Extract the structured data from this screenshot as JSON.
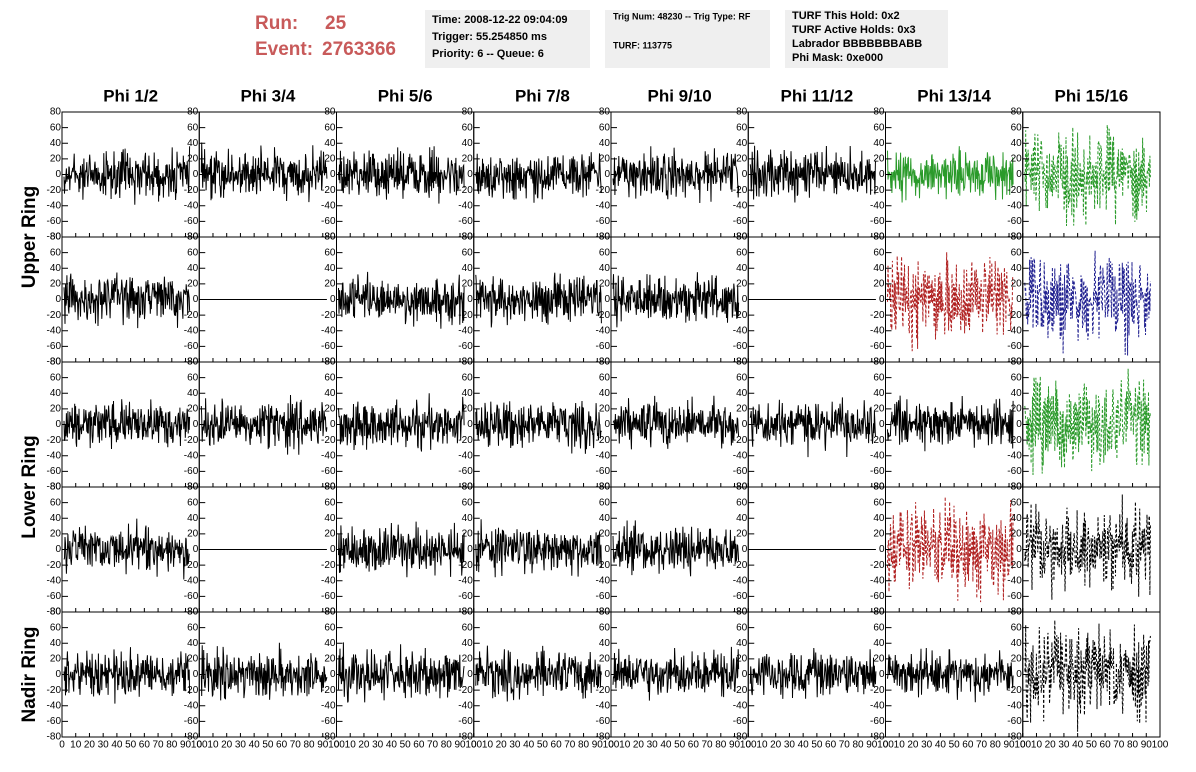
{
  "header": {
    "run_label": "Run:",
    "run": "25",
    "event_label": "Event:",
    "event": "2763366"
  },
  "info_boxes": [
    [
      {
        "text": "Time: 2008-12-22 09:04:09"
      },
      {
        "text": "Trigger: 55.254850 ms"
      },
      {
        "text": "Priority: 6 -- Queue: 6"
      }
    ],
    [
      {
        "text": "Trig Num: 48230 -- Trig Type: RF"
      },
      {
        "text": "TURF: 113775"
      }
    ],
    [
      {
        "text": "TURF This Hold: 0x2"
      },
      {
        "text": "TURF Active Holds: 0x3"
      },
      {
        "text": "Labrador BBBBBBBABB",
        "color": "#e020e0"
      },
      {
        "text": "Phi Mask: 0xe000"
      }
    ]
  ],
  "columns": [
    "Phi 1/2",
    "Phi 3/4",
    "Phi 5/6",
    "Phi 7/8",
    "Phi 9/10",
    "Phi 11/12",
    "Phi 13/14",
    "Phi 15/16"
  ],
  "ring_labels": [
    "Upper Ring",
    "Lower Ring",
    "Nadir Ring"
  ],
  "axes": {
    "ylim": [
      -80,
      80
    ],
    "yticks": [
      -80,
      -60,
      -40,
      -20,
      0,
      20,
      40,
      60,
      80
    ],
    "xlim": [
      0,
      100
    ],
    "xticks": [
      0,
      10,
      20,
      30,
      40,
      50,
      60,
      70,
      80,
      90,
      100
    ]
  },
  "panels": [
    [
      {
        "color": "#000000"
      },
      {
        "color": "#000000"
      },
      {
        "color": "#000000"
      },
      {
        "color": "#000000"
      },
      {
        "color": "#000000"
      },
      {
        "color": "#000000"
      },
      {
        "color": "#2a9a2a"
      },
      {
        "color": "#2a9a2a",
        "dashed": true
      }
    ],
    [
      {
        "color": "#000000"
      },
      {
        "color": "#000000",
        "flat": true
      },
      {
        "color": "#000000"
      },
      {
        "color": "#000000"
      },
      {
        "color": "#000000"
      },
      {
        "color": "#000000",
        "flat": true
      },
      {
        "color": "#b02020",
        "dashed": true
      },
      {
        "color": "#202090",
        "dashed": true
      }
    ],
    [
      {
        "color": "#000000"
      },
      {
        "color": "#000000"
      },
      {
        "color": "#000000"
      },
      {
        "color": "#000000"
      },
      {
        "color": "#000000"
      },
      {
        "color": "#000000"
      },
      {
        "color": "#000000"
      },
      {
        "color": "#2a9a2a",
        "dashed": true
      }
    ],
    [
      {
        "color": "#000000"
      },
      {
        "color": "#000000",
        "flat": true
      },
      {
        "color": "#000000"
      },
      {
        "color": "#000000"
      },
      {
        "color": "#000000"
      },
      {
        "color": "#000000",
        "flat": true
      },
      {
        "color": "#b02020",
        "dashed": true
      },
      {
        "color": "#000000",
        "dashed": true
      }
    ],
    [
      {
        "color": "#000000"
      },
      {
        "color": "#000000"
      },
      {
        "color": "#000000"
      },
      {
        "color": "#000000"
      },
      {
        "color": "#000000"
      },
      {
        "color": "#000000"
      },
      {
        "color": "#000000"
      },
      {
        "color": "#000000",
        "dashed": true
      }
    ]
  ]
}
